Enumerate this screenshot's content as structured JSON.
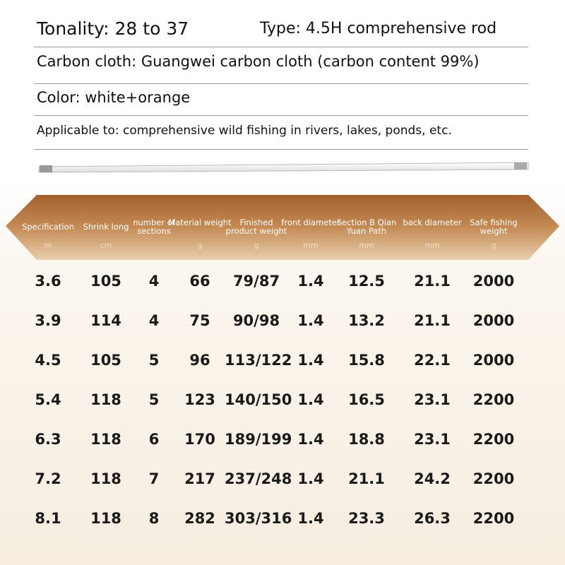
{
  "header": {
    "tonality": "Tonality: 28 to 37",
    "type": "Type: 4.5H comprehensive rod"
  },
  "lines": [
    "Carbon cloth: Guangwei carbon cloth (carbon content 99%)",
    "Color: white+orange",
    "Applicable to: comprehensive wild fishing in rivers, lakes, ponds, etc."
  ],
  "table": {
    "columns": [
      {
        "name": "Specification",
        "unit": "m"
      },
      {
        "name": "Shrink long",
        "unit": "cm"
      },
      {
        "name": "number of sections"
      },
      {
        "name": "Material weight",
        "unit": "g"
      },
      {
        "name": "Finished product weight",
        "unit": "g"
      },
      {
        "name": "front diameter",
        "unit": "mm"
      },
      {
        "name": "Section B Qian Yuan Path",
        "unit": "mm"
      },
      {
        "name": "back diameter",
        "unit": "mm"
      },
      {
        "name": "Safe fishing weight",
        "unit": "g"
      }
    ],
    "rows": [
      [
        "3.6",
        "105",
        "4",
        "66",
        "79/87",
        "1.4",
        "12.5",
        "21.1",
        "2000"
      ],
      [
        "3.9",
        "114",
        "4",
        "75",
        "90/98",
        "1.4",
        "13.2",
        "21.1",
        "2000"
      ],
      [
        "4.5",
        "105",
        "5",
        "96",
        "113/122",
        "1.4",
        "15.8",
        "22.1",
        "2000"
      ],
      [
        "5.4",
        "118",
        "5",
        "123",
        "140/150",
        "1.4",
        "16.5",
        "23.1",
        "2200"
      ],
      [
        "6.3",
        "118",
        "6",
        "170",
        "189/199",
        "1.4",
        "18.8",
        "23.1",
        "2200"
      ],
      [
        "7.2",
        "118",
        "7",
        "217",
        "237/248",
        "1.4",
        "21.1",
        "24.2",
        "2200"
      ],
      [
        "8.1",
        "118",
        "8",
        "282",
        "303/316",
        "1.4",
        "23.3",
        "26.3",
        "2200"
      ]
    ]
  }
}
